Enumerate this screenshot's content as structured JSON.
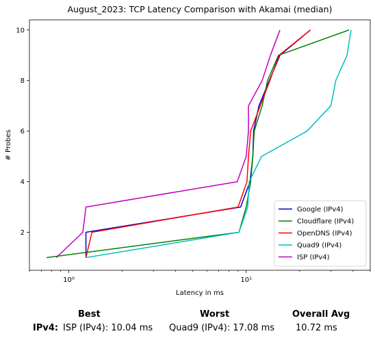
{
  "chart_data": {
    "type": "line",
    "title": "August_2023: TCP Latency Comparison with Akamai (median)",
    "xlabel": "Latency in ms",
    "ylabel": "# Probes",
    "xscale": "log",
    "xlim": [
      0.6,
      50
    ],
    "ylim": [
      0.5,
      10.4
    ],
    "x_ticks": [
      {
        "value": 1,
        "label": "10⁰"
      },
      {
        "value": 10,
        "label": "10¹"
      }
    ],
    "y_ticks": [
      2,
      4,
      6,
      8,
      10
    ],
    "grid": false,
    "legend_position": "lower right",
    "series": [
      {
        "name": "Google (IPv4)",
        "color": "#0000cc",
        "points": [
          [
            1.25,
            1
          ],
          [
            1.25,
            2
          ],
          [
            9.3,
            3
          ],
          [
            10.5,
            4
          ],
          [
            10.9,
            5
          ],
          [
            11.0,
            6
          ],
          [
            11.8,
            7
          ],
          [
            13.5,
            8
          ],
          [
            15.5,
            9
          ],
          [
            23,
            10
          ]
        ]
      },
      {
        "name": "Cloudflare (IPv4)",
        "color": "#008000",
        "points": [
          [
            0.75,
            1
          ],
          [
            9.1,
            2
          ],
          [
            10.0,
            3
          ],
          [
            10.6,
            4
          ],
          [
            10.9,
            5
          ],
          [
            11.1,
            6
          ],
          [
            12.3,
            7
          ],
          [
            13.2,
            8
          ],
          [
            15.2,
            9
          ],
          [
            38,
            10
          ]
        ]
      },
      {
        "name": "OpenDNS (IPv4)",
        "color": "#ff0000",
        "points": [
          [
            1.25,
            1
          ],
          [
            1.35,
            2
          ],
          [
            9.0,
            3
          ],
          [
            10.1,
            4
          ],
          [
            10.3,
            5
          ],
          [
            10.6,
            6
          ],
          [
            12.0,
            7
          ],
          [
            13.6,
            8
          ],
          [
            15.3,
            9
          ],
          [
            23,
            10
          ]
        ]
      },
      {
        "name": "Quad9 (IPv4)",
        "color": "#00bfbf",
        "points": [
          [
            1.25,
            1
          ],
          [
            9.1,
            2
          ],
          [
            10.2,
            3
          ],
          [
            10.4,
            4
          ],
          [
            12.2,
            5
          ],
          [
            22,
            6
          ],
          [
            30,
            7
          ],
          [
            32,
            8
          ],
          [
            37,
            9
          ],
          [
            39,
            10
          ]
        ]
      },
      {
        "name": "ISP (IPv4)",
        "color": "#bf00bf",
        "points": [
          [
            0.85,
            1
          ],
          [
            1.2,
            2
          ],
          [
            1.25,
            3
          ],
          [
            8.9,
            4
          ],
          [
            10.0,
            5
          ],
          [
            10.3,
            6
          ],
          [
            10.3,
            7
          ],
          [
            12.3,
            8
          ],
          [
            13.7,
            9
          ],
          [
            15.5,
            10
          ]
        ]
      }
    ]
  },
  "summary": {
    "headers": {
      "best": "Best",
      "worst": "Worst",
      "overall": "Overall Avg"
    },
    "row_label": "IPv4:",
    "best": "ISP (IPv4): 10.04 ms",
    "worst": "Quad9 (IPv4): 17.08 ms",
    "overall": "10.72 ms"
  }
}
